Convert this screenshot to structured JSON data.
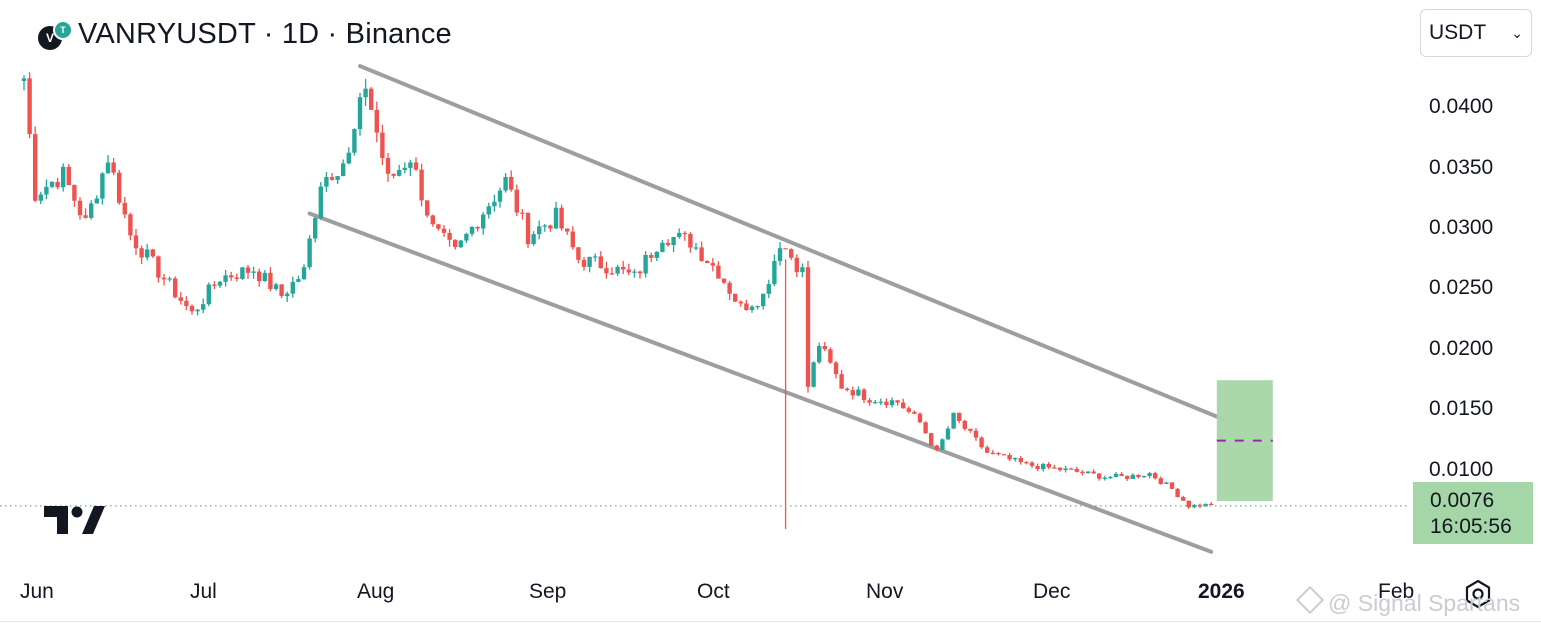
{
  "header": {
    "symbol_title": "VANRYUSDT · 1D · Binance",
    "currency": "USDT"
  },
  "price_scale": {
    "ticks": [
      "0.0400",
      "0.0350",
      "0.0300",
      "0.0250",
      "0.0200",
      "0.0150",
      "0.0100"
    ],
    "last_price": "0.0076",
    "countdown": "16:05:56"
  },
  "time_scale": {
    "ticks": [
      {
        "label": "Jun",
        "bold": false
      },
      {
        "label": "Jul",
        "bold": false
      },
      {
        "label": "Aug",
        "bold": false
      },
      {
        "label": "Sep",
        "bold": false
      },
      {
        "label": "Oct",
        "bold": false
      },
      {
        "label": "Nov",
        "bold": false
      },
      {
        "label": "Dec",
        "bold": false
      },
      {
        "label": "2026",
        "bold": true
      },
      {
        "label": "Feb",
        "bold": false
      }
    ]
  },
  "watermark": "@ Signal Spartans",
  "colors": {
    "up": "#26a69a",
    "down": "#ef5350",
    "channel": "#9e9e9e",
    "target_zone": "#a5d6a7",
    "target_line": "#9c27b0"
  },
  "chart_data": {
    "type": "candlestick",
    "symbol": "VANRYUSDT",
    "interval": "1D",
    "exchange": "Binance",
    "x_range": [
      "2025-05-27",
      "2026-02-16"
    ],
    "y_range": [
      0.0037,
      0.0445
    ],
    "y_ticks": [
      0.04,
      0.035,
      0.03,
      0.025,
      0.02,
      0.015,
      0.01
    ],
    "last_price": 0.0076,
    "anchors": [
      [
        "2025-05-27",
        0.043
      ],
      [
        "2025-05-29",
        0.0335
      ],
      [
        "2025-06-03",
        0.035
      ],
      [
        "2025-06-07",
        0.031
      ],
      [
        "2025-06-11",
        0.0365
      ],
      [
        "2025-06-15",
        0.03
      ],
      [
        "2025-06-20",
        0.027
      ],
      [
        "2025-06-26",
        0.0235
      ],
      [
        "2025-07-01",
        0.0265
      ],
      [
        "2025-07-07",
        0.0272
      ],
      [
        "2025-07-12",
        0.025
      ],
      [
        "2025-07-16",
        0.027
      ],
      [
        "2025-07-19",
        0.0345
      ],
      [
        "2025-07-24",
        0.0365
      ],
      [
        "2025-07-27",
        0.0425
      ],
      [
        "2025-07-31",
        0.0345
      ],
      [
        "2025-08-04",
        0.0365
      ],
      [
        "2025-08-08",
        0.0305
      ],
      [
        "2025-08-12",
        0.0285
      ],
      [
        "2025-08-17",
        0.032
      ],
      [
        "2025-08-21",
        0.0345
      ],
      [
        "2025-08-25",
        0.03
      ],
      [
        "2025-08-30",
        0.0315
      ],
      [
        "2025-09-03",
        0.028
      ],
      [
        "2025-09-08",
        0.0275
      ],
      [
        "2025-09-13",
        0.0265
      ],
      [
        "2025-09-18",
        0.03
      ],
      [
        "2025-09-23",
        0.0295
      ],
      [
        "2025-09-28",
        0.027
      ],
      [
        "2025-10-02",
        0.024
      ],
      [
        "2025-10-06",
        0.025
      ],
      [
        "2025-10-09",
        0.0295
      ],
      [
        "2025-10-13",
        0.027
      ],
      [
        "2025-10-14",
        0.0175
      ],
      [
        "2025-10-16",
        0.021
      ],
      [
        "2025-10-20",
        0.0175
      ],
      [
        "2025-10-25",
        0.0165
      ],
      [
        "2025-10-30",
        0.0162
      ],
      [
        "2025-11-03",
        0.0145
      ],
      [
        "2025-11-06",
        0.012
      ],
      [
        "2025-11-09",
        0.015
      ],
      [
        "2025-11-15",
        0.012
      ],
      [
        "2025-11-22",
        0.011
      ],
      [
        "2025-11-30",
        0.0105
      ],
      [
        "2025-12-06",
        0.01
      ],
      [
        "2025-12-10",
        0.01
      ],
      [
        "2025-12-14",
        0.0103
      ],
      [
        "2025-12-18",
        0.009
      ],
      [
        "2025-12-21",
        0.0076
      ],
      [
        "2025-12-25",
        0.0077
      ]
    ],
    "wicks": [
      {
        "date": "2025-10-10",
        "high": 0.028,
        "low": 0.0057
      }
    ],
    "channel": {
      "upper": {
        "from": [
          "2025-07-26",
          0.044
        ],
        "to": [
          "2025-12-27",
          0.0148
        ]
      },
      "lower": {
        "from": [
          "2025-07-17",
          0.0318
        ],
        "to": [
          "2025-12-25",
          0.0038
        ]
      }
    },
    "target_zone": {
      "from_date": "2025-12-26",
      "to_date": "2026-01-05",
      "high": 0.018,
      "low": 0.008,
      "level": 0.013
    },
    "last_price_line": 0.0076
  }
}
